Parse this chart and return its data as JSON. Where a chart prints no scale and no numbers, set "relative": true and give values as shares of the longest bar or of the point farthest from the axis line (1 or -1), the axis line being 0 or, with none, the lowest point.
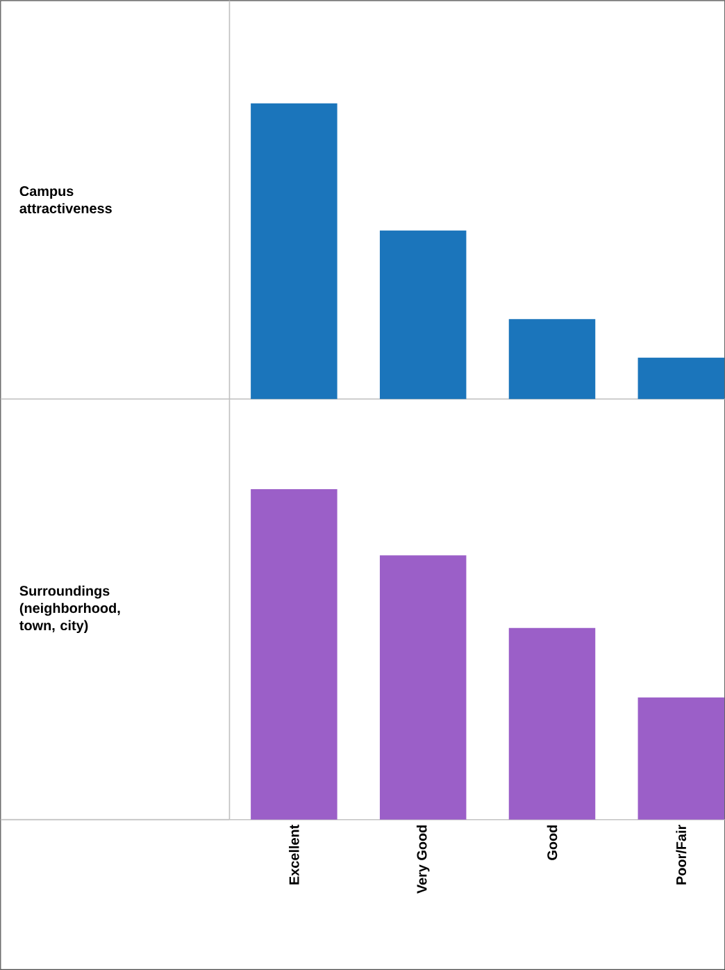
{
  "chart_data": [
    {
      "type": "bar",
      "ylabel": "Campus attractiveness",
      "categories": [
        null,
        null,
        null,
        null
      ],
      "relative": true,
      "tick_labels": false,
      "series": [
        {
          "color": "#1b75bb",
          "values": [
            1,
            0.57,
            0.27,
            0.14
          ]
        }
      ]
    },
    {
      "type": "bar",
      "ylabel": "Surroundings (neighborhood, town, city)",
      "categories": [
        "Excellent",
        "Very Good",
        "Good",
        "Poor/Fair"
      ],
      "relative": true,
      "tick_labels": "x",
      "series": [
        {
          "color": "#9b5fc8",
          "values": [
            1,
            0.8,
            0.58,
            0.37
          ]
        }
      ]
    }
  ]
}
